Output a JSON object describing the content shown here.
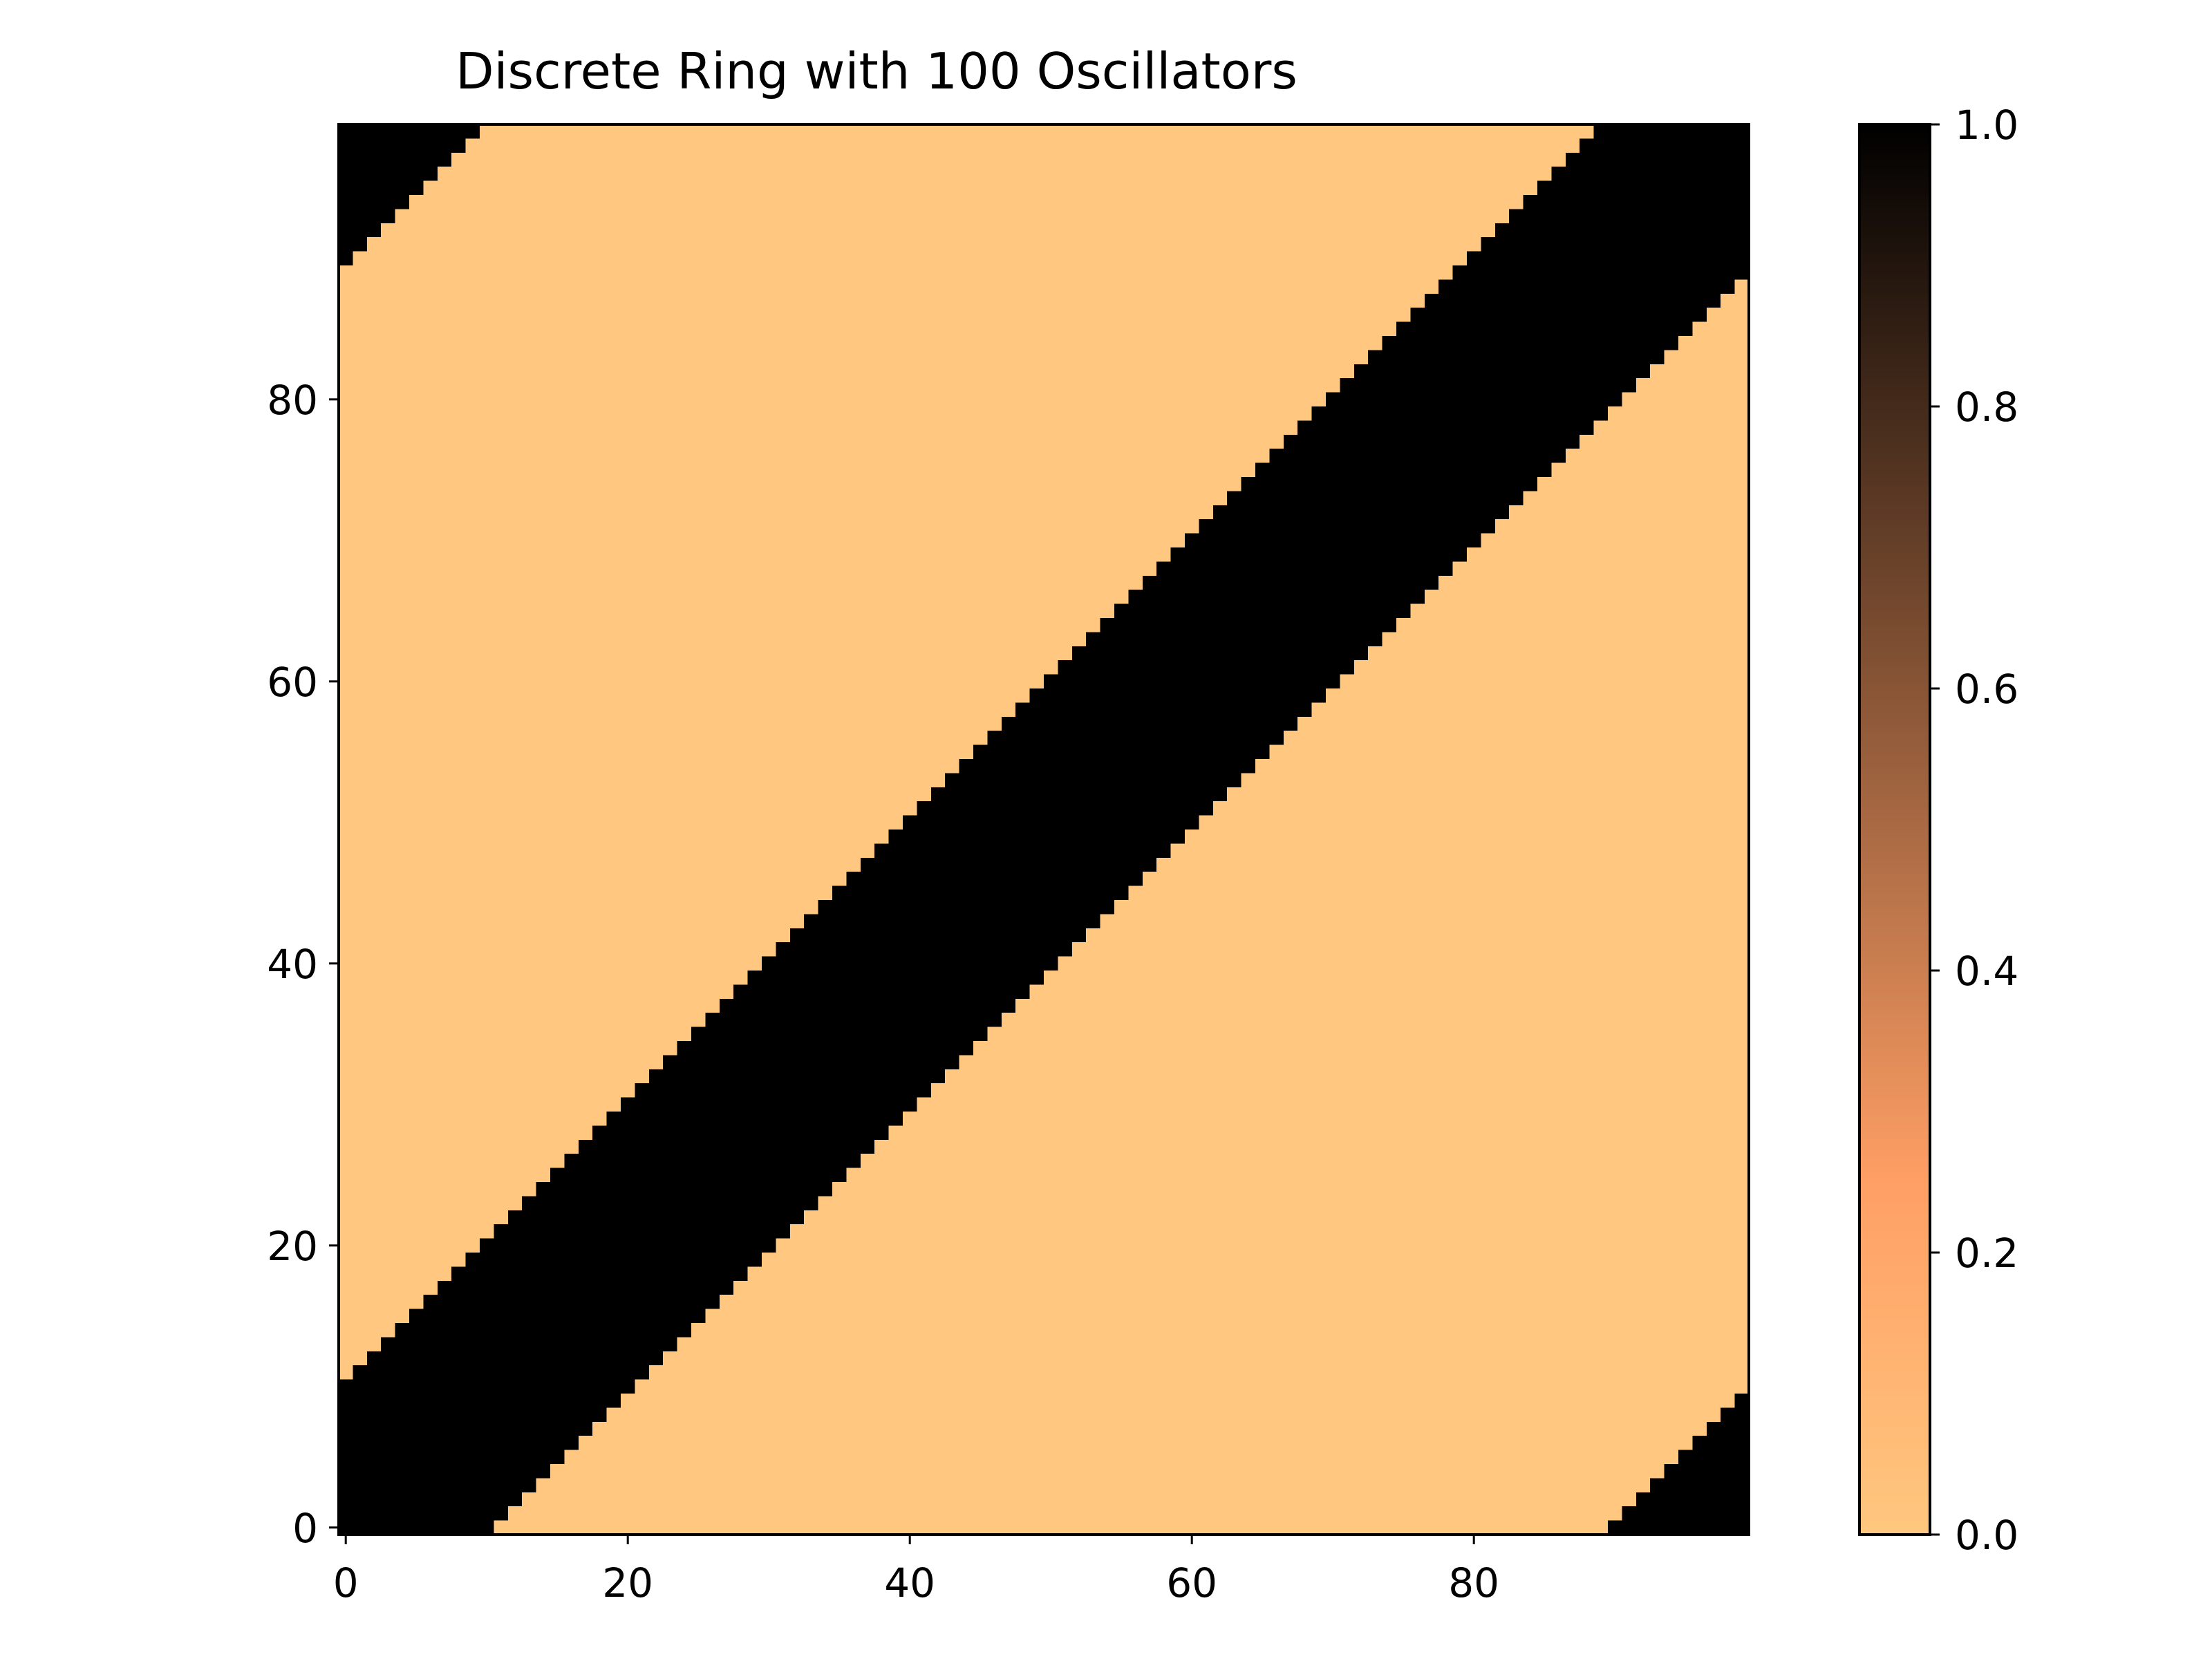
{
  "chart_data": {
    "type": "heatmap",
    "title": "Discrete Ring with 100 Oscillators",
    "xlabel": "",
    "ylabel": "",
    "n": 100,
    "coupling_radius": 10,
    "rule": "cell(i,j) = 1 when the circular index distance between i and j is at most 10, otherwise 0",
    "xlim": [
      -0.5,
      99.5
    ],
    "ylim": [
      -0.5,
      99.5
    ],
    "x_ticks": [
      0,
      20,
      40,
      60,
      80
    ],
    "x_tick_labels": [
      "0",
      "20",
      "40",
      "60",
      "80"
    ],
    "y_ticks": [
      0,
      20,
      40,
      60,
      80
    ],
    "y_tick_labels": [
      "0",
      "20",
      "40",
      "60",
      "80"
    ],
    "value_range": [
      0.0,
      1.0
    ],
    "colormap": "copper_r",
    "colors": {
      "low": "#ffc77f",
      "mid": "#ff9f65",
      "high": "#000000"
    },
    "grid": false,
    "colorbar": {
      "ticks": [
        0.0,
        0.2,
        0.4,
        0.6,
        0.8,
        1.0
      ],
      "tick_labels": [
        "0.0",
        "0.2",
        "0.4",
        "0.6",
        "0.8",
        "1.0"
      ],
      "placement": "right"
    }
  }
}
